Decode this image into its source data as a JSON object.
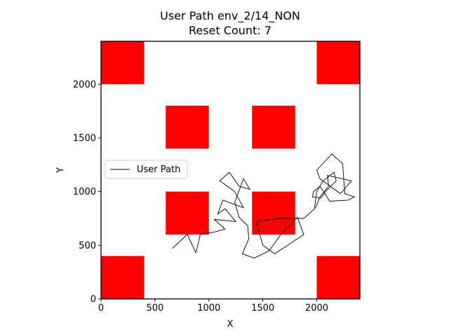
{
  "chart_data": {
    "type": "line",
    "title": "User Path env_2/14_NON",
    "subtitle": "Reset Count: 7",
    "xlabel": "X",
    "ylabel": "Y",
    "xlim": [
      0,
      2400
    ],
    "ylim": [
      0,
      2400
    ],
    "xticks": [
      0,
      500,
      1000,
      1500,
      2000
    ],
    "yticks": [
      0,
      500,
      1000,
      1500,
      2000
    ],
    "grid": false,
    "legend": {
      "entries": [
        "User Path"
      ],
      "placement": "center-left"
    },
    "obstacles": {
      "color": "#ff0000",
      "rects": [
        {
          "x": [
            0,
            400
          ],
          "y": [
            2000,
            2400
          ]
        },
        {
          "x": [
            2000,
            2400
          ],
          "y": [
            2000,
            2400
          ]
        },
        {
          "x": [
            600,
            1000
          ],
          "y": [
            1400,
            1800
          ]
        },
        {
          "x": [
            1400,
            1800
          ],
          "y": [
            1400,
            1800
          ]
        },
        {
          "x": [
            600,
            1000
          ],
          "y": [
            600,
            1000
          ]
        },
        {
          "x": [
            1400,
            1800
          ],
          "y": [
            600,
            1000
          ]
        },
        {
          "x": [
            0,
            400
          ],
          "y": [
            0,
            400
          ]
        },
        {
          "x": [
            2000,
            2400
          ],
          "y": [
            0,
            400
          ]
        }
      ]
    },
    "series": [
      {
        "name": "User Path",
        "color": "#000000",
        "points": [
          [
            660,
            470
          ],
          [
            800,
            600
          ],
          [
            880,
            430
          ],
          [
            920,
            600
          ],
          [
            1040,
            620
          ],
          [
            1150,
            650
          ],
          [
            1050,
            740
          ],
          [
            1250,
            720
          ],
          [
            1150,
            840
          ],
          [
            1080,
            790
          ],
          [
            1130,
            920
          ],
          [
            1320,
            850
          ],
          [
            1240,
            1000
          ],
          [
            1100,
            1100
          ],
          [
            1190,
            1180
          ],
          [
            1280,
            1050
          ],
          [
            1380,
            1020
          ],
          [
            1320,
            1120
          ],
          [
            1240,
            900
          ],
          [
            1280,
            760
          ],
          [
            1360,
            680
          ],
          [
            1370,
            560
          ],
          [
            1310,
            420
          ],
          [
            1420,
            380
          ],
          [
            1560,
            450
          ],
          [
            1660,
            590
          ],
          [
            1820,
            760
          ],
          [
            1880,
            600
          ],
          [
            1610,
            420
          ],
          [
            1500,
            500
          ],
          [
            1440,
            720
          ],
          [
            1650,
            750
          ],
          [
            1880,
            750
          ],
          [
            1990,
            850
          ],
          [
            2030,
            950
          ],
          [
            2110,
            1050
          ],
          [
            2100,
            1150
          ],
          [
            2320,
            1100
          ],
          [
            2220,
            980
          ],
          [
            2030,
            1120
          ],
          [
            2000,
            1200
          ],
          [
            2140,
            1350
          ],
          [
            2240,
            1260
          ],
          [
            2260,
            980
          ],
          [
            2350,
            950
          ],
          [
            2290,
            920
          ],
          [
            2120,
            910
          ],
          [
            2030,
            1050
          ],
          [
            1970,
            1000
          ],
          [
            1960,
            950
          ],
          [
            2040,
            940
          ],
          [
            2080,
            1000
          ],
          [
            2180,
            1100
          ],
          [
            2160,
            1180
          ],
          [
            2060,
            1100
          ],
          [
            2000,
            1000
          ],
          [
            1980,
            850
          ]
        ]
      }
    ]
  }
}
